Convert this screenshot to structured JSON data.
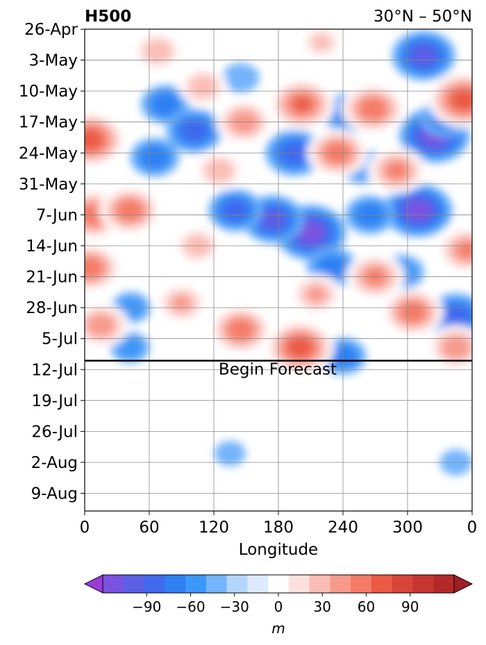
{
  "chart_data": {
    "type": "heatmap",
    "title": "H500",
    "subtitle": "30°N – 50°N",
    "xlabel": "Longitude",
    "ylabel": "",
    "x_ticks": [
      "0",
      "60",
      "120",
      "180",
      "240",
      "300",
      "0"
    ],
    "x_tick_values": [
      0,
      60,
      120,
      180,
      240,
      300,
      360
    ],
    "xlim": [
      0,
      360
    ],
    "y_ticks": [
      "26-Apr",
      "3-May",
      "10-May",
      "17-May",
      "24-May",
      "31-May",
      "7-Jun",
      "14-Jun",
      "21-Jun",
      "28-Jun",
      "5-Jul",
      "12-Jul",
      "19-Jul",
      "26-Jul",
      "2-Aug",
      "9-Aug"
    ],
    "y_tick_values": [
      "2023-04-26",
      "2023-05-03",
      "2023-05-10",
      "2023-05-17",
      "2023-05-24",
      "2023-05-31",
      "2023-06-07",
      "2023-06-14",
      "2023-06-21",
      "2023-06-28",
      "2023-07-05",
      "2023-07-12",
      "2023-07-19",
      "2023-07-26",
      "2023-08-02",
      "2023-08-09"
    ],
    "ylim": [
      "2023-04-26",
      "2023-08-13"
    ],
    "y_reversed": true,
    "grid": true,
    "forecast_line": {
      "date": "2023-07-10",
      "label": "Begin Forecast"
    },
    "colorbar": {
      "label": "m",
      "ticks": [
        "−90",
        "−60",
        "−30",
        "0",
        "30",
        "60",
        "90"
      ],
      "tick_values": [
        -90,
        -60,
        -30,
        0,
        30,
        60,
        90
      ],
      "levels": [
        -105,
        -90,
        -75,
        -60,
        -45,
        -30,
        -15,
        15,
        30,
        45,
        60,
        75,
        90,
        105
      ],
      "colors": [
        "#7b52e0",
        "#5a5fe6",
        "#4169ee",
        "#2f80f3",
        "#3c98f8",
        "#74b4fb",
        "#b4d6fc",
        "#ddeafd",
        "#ffffff",
        "#fde1df",
        "#fbbdb6",
        "#f79a8c",
        "#f47b66",
        "#ea5a45",
        "#d84538",
        "#c73532",
        "#b4282a"
      ],
      "under_color": "#9b3bd6",
      "over_color": "#a01f24",
      "extend": "both"
    },
    "anomaly_blobs": [
      {
        "lon": 210,
        "date": "2023-06-11",
        "value": -100
      },
      {
        "lon": 195,
        "date": "2023-05-24",
        "value": -75
      },
      {
        "lon": 175,
        "date": "2023-06-08",
        "value": -80
      },
      {
        "lon": 140,
        "date": "2023-06-06",
        "value": -65
      },
      {
        "lon": 75,
        "date": "2023-05-13",
        "value": -55
      },
      {
        "lon": 102,
        "date": "2023-05-19",
        "value": -70
      },
      {
        "lon": 65,
        "date": "2023-05-25",
        "value": -55
      },
      {
        "lon": 325,
        "date": "2023-05-20",
        "value": -100
      },
      {
        "lon": 315,
        "date": "2023-05-02",
        "value": -85
      },
      {
        "lon": 335,
        "date": "2023-05-16",
        "value": -55
      },
      {
        "lon": 310,
        "date": "2023-06-06",
        "value": -95
      },
      {
        "lon": 265,
        "date": "2023-06-07",
        "value": -55
      },
      {
        "lon": 258,
        "date": "2023-05-27",
        "value": -45
      },
      {
        "lon": 230,
        "date": "2023-06-19",
        "value": -60
      },
      {
        "lon": 345,
        "date": "2023-06-30",
        "value": -75
      },
      {
        "lon": 295,
        "date": "2023-06-20",
        "value": -45
      },
      {
        "lon": 245,
        "date": "2023-05-15",
        "value": -60
      },
      {
        "lon": 240,
        "date": "2023-07-09",
        "value": -50
      },
      {
        "lon": 43,
        "date": "2023-06-28",
        "value": -35
      },
      {
        "lon": 42,
        "date": "2023-07-07",
        "value": -35
      },
      {
        "lon": 145,
        "date": "2023-05-07",
        "value": -30
      },
      {
        "lon": 5,
        "date": "2023-05-21",
        "value": 100
      },
      {
        "lon": 8,
        "date": "2023-06-07",
        "value": 85
      },
      {
        "lon": 5,
        "date": "2023-06-19",
        "value": 80
      },
      {
        "lon": 15,
        "date": "2023-07-02",
        "value": 70
      },
      {
        "lon": 42,
        "date": "2023-06-06",
        "value": 80
      },
      {
        "lon": 68,
        "date": "2023-05-01",
        "value": 55
      },
      {
        "lon": 110,
        "date": "2023-05-09",
        "value": 55
      },
      {
        "lon": 148,
        "date": "2023-05-17",
        "value": 70
      },
      {
        "lon": 202,
        "date": "2023-05-13",
        "value": 90
      },
      {
        "lon": 235,
        "date": "2023-05-24",
        "value": 80
      },
      {
        "lon": 268,
        "date": "2023-05-14",
        "value": 85
      },
      {
        "lon": 290,
        "date": "2023-05-28",
        "value": 75
      },
      {
        "lon": 352,
        "date": "2023-05-12",
        "value": 100
      },
      {
        "lon": 220,
        "date": "2023-04-29",
        "value": 45
      },
      {
        "lon": 355,
        "date": "2023-06-15",
        "value": 75
      },
      {
        "lon": 270,
        "date": "2023-06-21",
        "value": 75
      },
      {
        "lon": 215,
        "date": "2023-06-25",
        "value": 60
      },
      {
        "lon": 200,
        "date": "2023-07-07",
        "value": 95
      },
      {
        "lon": 145,
        "date": "2023-07-03",
        "value": 80
      },
      {
        "lon": 305,
        "date": "2023-06-29",
        "value": 80
      },
      {
        "lon": 345,
        "date": "2023-07-07",
        "value": 70
      },
      {
        "lon": 125,
        "date": "2023-05-28",
        "value": 55
      },
      {
        "lon": 90,
        "date": "2023-06-27",
        "value": 60
      },
      {
        "lon": 105,
        "date": "2023-06-14",
        "value": 50
      },
      {
        "lon": 200,
        "date": "2023-07-19",
        "value": 22
      },
      {
        "lon": 160,
        "date": "2023-07-22",
        "value": 20
      },
      {
        "lon": 260,
        "date": "2023-07-24",
        "value": 20
      },
      {
        "lon": 330,
        "date": "2023-07-20",
        "value": 20
      },
      {
        "lon": 55,
        "date": "2023-07-30",
        "value": 18
      },
      {
        "lon": 345,
        "date": "2023-08-02",
        "value": -20
      },
      {
        "lon": 135,
        "date": "2023-07-31",
        "value": -18
      }
    ]
  }
}
